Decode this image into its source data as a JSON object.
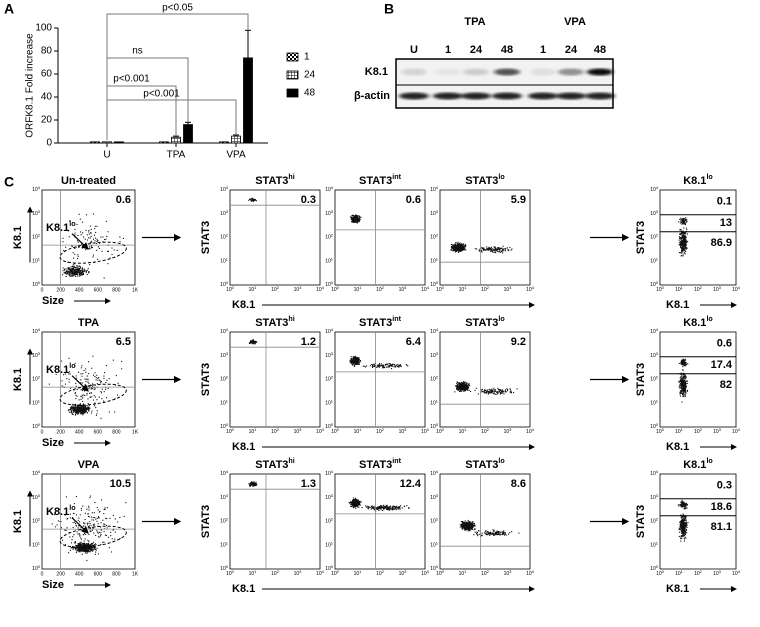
{
  "panel_labels": [
    "A",
    "B",
    "C"
  ],
  "chart_data": {
    "type": "bar",
    "ylabel": "ORFK8.1 Fold increase",
    "categories": [
      "U",
      "TPA",
      "VPA"
    ],
    "ylim": [
      0,
      100
    ],
    "yticks": [
      0,
      20,
      40,
      60,
      80,
      100
    ],
    "series": [
      {
        "name": "1",
        "color": "#ffffff",
        "pattern": "checker",
        "values": [
          1,
          1,
          1
        ]
      },
      {
        "name": "24",
        "color": "#ffffff",
        "pattern": "grid",
        "values": [
          1,
          5,
          6
        ],
        "errors": [
          0,
          1,
          1
        ]
      },
      {
        "name": "48",
        "color": "#000000",
        "values": [
          1,
          16,
          74
        ],
        "errors": [
          0,
          2,
          24
        ]
      }
    ],
    "annotations": [
      "p<0.05",
      "ns",
      "p<0.001",
      "p<0.001"
    ]
  },
  "blot": {
    "groups": [
      "TPA",
      "VPA"
    ],
    "lanes": [
      "U",
      "1",
      "24",
      "48",
      "1",
      "24",
      "48"
    ],
    "rows": [
      "K8.1",
      "β-actin"
    ]
  },
  "flow": {
    "axis": {
      "k81": "K8.1",
      "size": "Size",
      "stat3": "STAT3"
    },
    "gate_label": {
      "base": "K8.1",
      "sup": "lo"
    },
    "subset_labels": [
      {
        "base": "STAT3",
        "sup": "hi"
      },
      {
        "base": "STAT3",
        "sup": "int"
      },
      {
        "base": "STAT3",
        "sup": "lo"
      }
    ],
    "size_ticks": [
      "0",
      "200",
      "400",
      "600",
      "800",
      "1K"
    ],
    "log_base": "10",
    "log_exponents": [
      "0",
      "1",
      "2",
      "3",
      "4"
    ],
    "rows": [
      {
        "title": "Un-treated",
        "gate": 0.6,
        "subsets": [
          0.3,
          0.6,
          5.9
        ],
        "k81lo": [
          0.1,
          13,
          86.9
        ]
      },
      {
        "title": "TPA",
        "gate": 6.5,
        "subsets": [
          1.2,
          6.4,
          9.2
        ],
        "k81lo": [
          0.6,
          17.4,
          82
        ]
      },
      {
        "title": "VPA",
        "gate": 10.5,
        "subsets": [
          1.3,
          12.4,
          8.6
        ],
        "k81lo": [
          0.3,
          18.6,
          81.1
        ]
      }
    ]
  }
}
